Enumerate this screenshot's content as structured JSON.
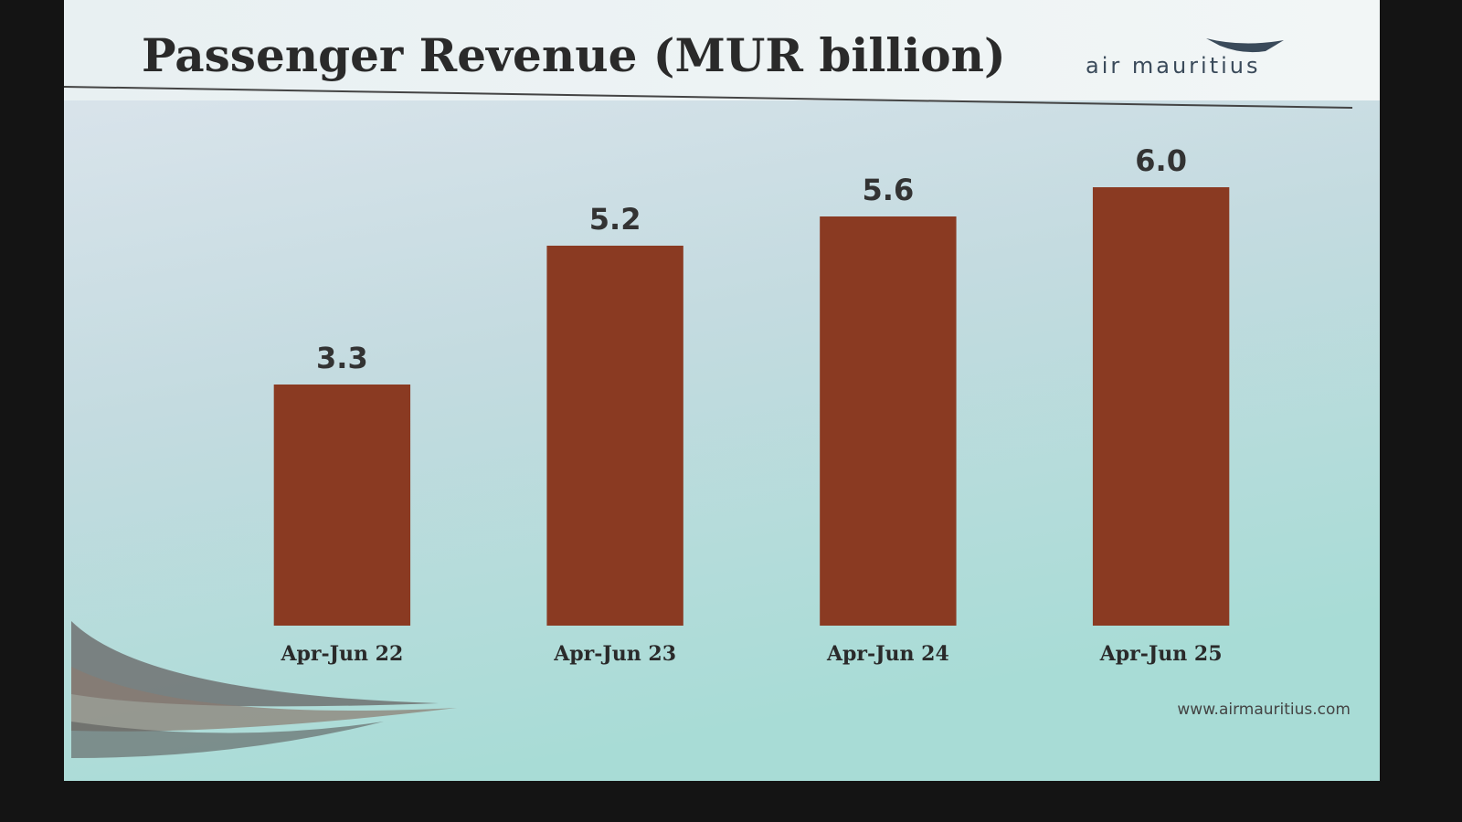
{
  "chart_data": {
    "type": "bar",
    "title": "Passenger Revenue (MUR billion)",
    "categories": [
      "Apr-Jun 22",
      "Apr-Jun 23",
      "Apr-Jun 24",
      "Apr-Jun 25"
    ],
    "values": [
      3.3,
      5.2,
      5.6,
      6.0
    ],
    "value_labels": [
      "3.3",
      "5.2",
      "5.6",
      "6.0"
    ],
    "color": "#8a3a22"
  },
  "logo": "air mauritius",
  "footer": "www.airmauritius.com"
}
